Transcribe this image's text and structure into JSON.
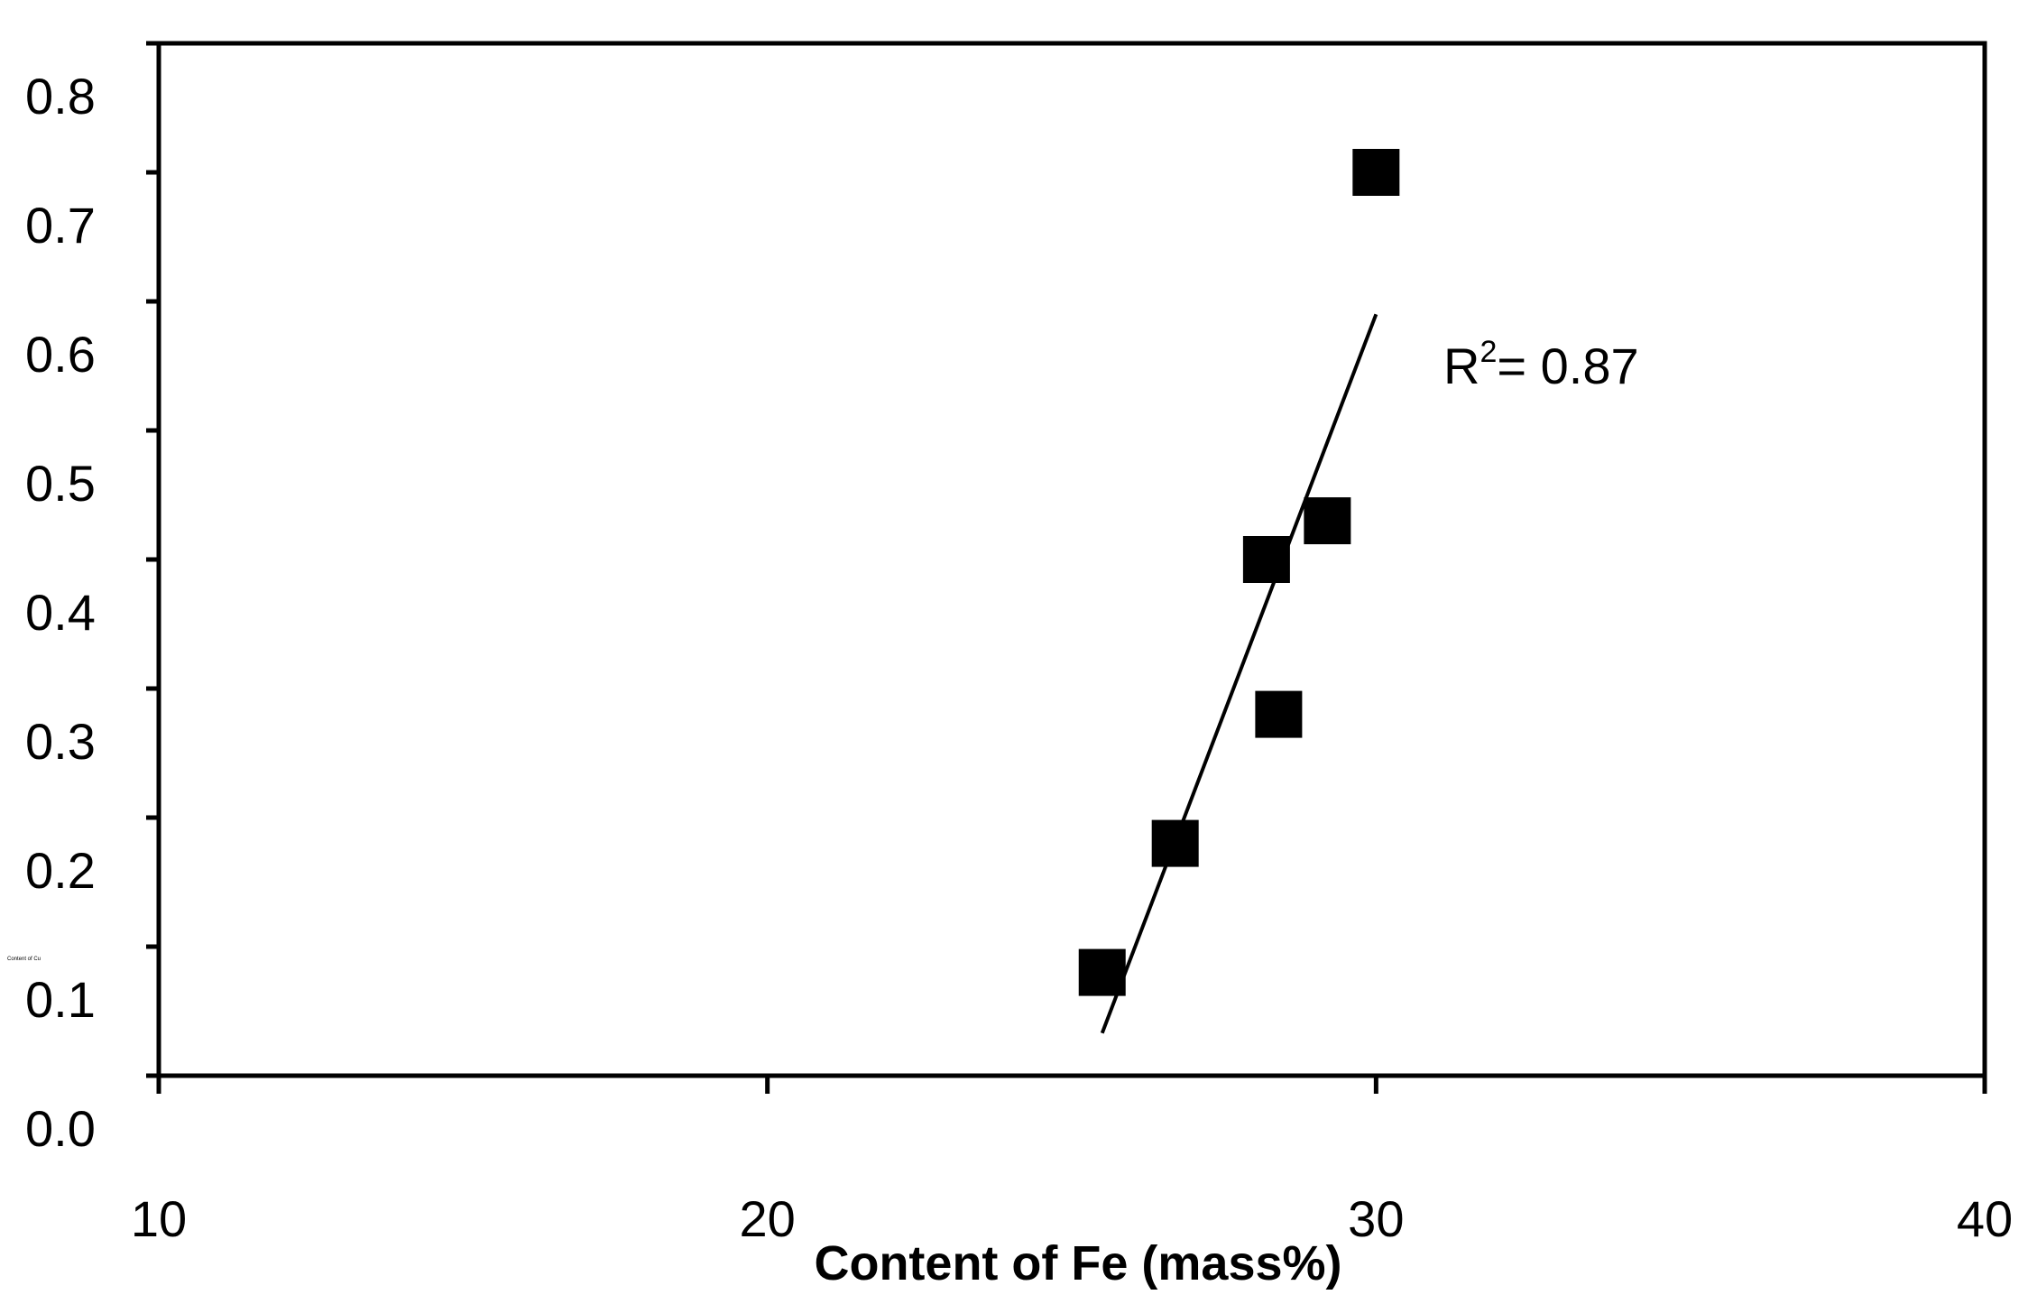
{
  "chart_data": {
    "type": "scatter",
    "xlabel": "Content of Fe (mass%)",
    "ylabel": "Content of Cu",
    "xlim": [
      10,
      40
    ],
    "ylim": [
      0.0,
      0.8
    ],
    "x_ticks": [
      "10",
      "20",
      "30",
      "40"
    ],
    "y_ticks": [
      "0.0",
      "0.1",
      "0.2",
      "0.3",
      "0.4",
      "0.5",
      "0.6",
      "0.7",
      "0.8"
    ],
    "series": [
      {
        "marker": "square",
        "color": "#000000",
        "points": [
          {
            "x": 25.5,
            "y": 0.08
          },
          {
            "x": 26.7,
            "y": 0.18
          },
          {
            "x": 28.2,
            "y": 0.4
          },
          {
            "x": 28.4,
            "y": 0.28
          },
          {
            "x": 29.2,
            "y": 0.43
          },
          {
            "x": 30.0,
            "y": 0.7
          }
        ]
      }
    ],
    "trendline": {
      "x": [
        25.5,
        30.0
      ],
      "y": [
        0.033,
        0.59
      ]
    },
    "annotation": {
      "text": "R",
      "superscript": "2",
      "suffix": "= 0.87"
    },
    "grid": false,
    "legend": "none"
  }
}
